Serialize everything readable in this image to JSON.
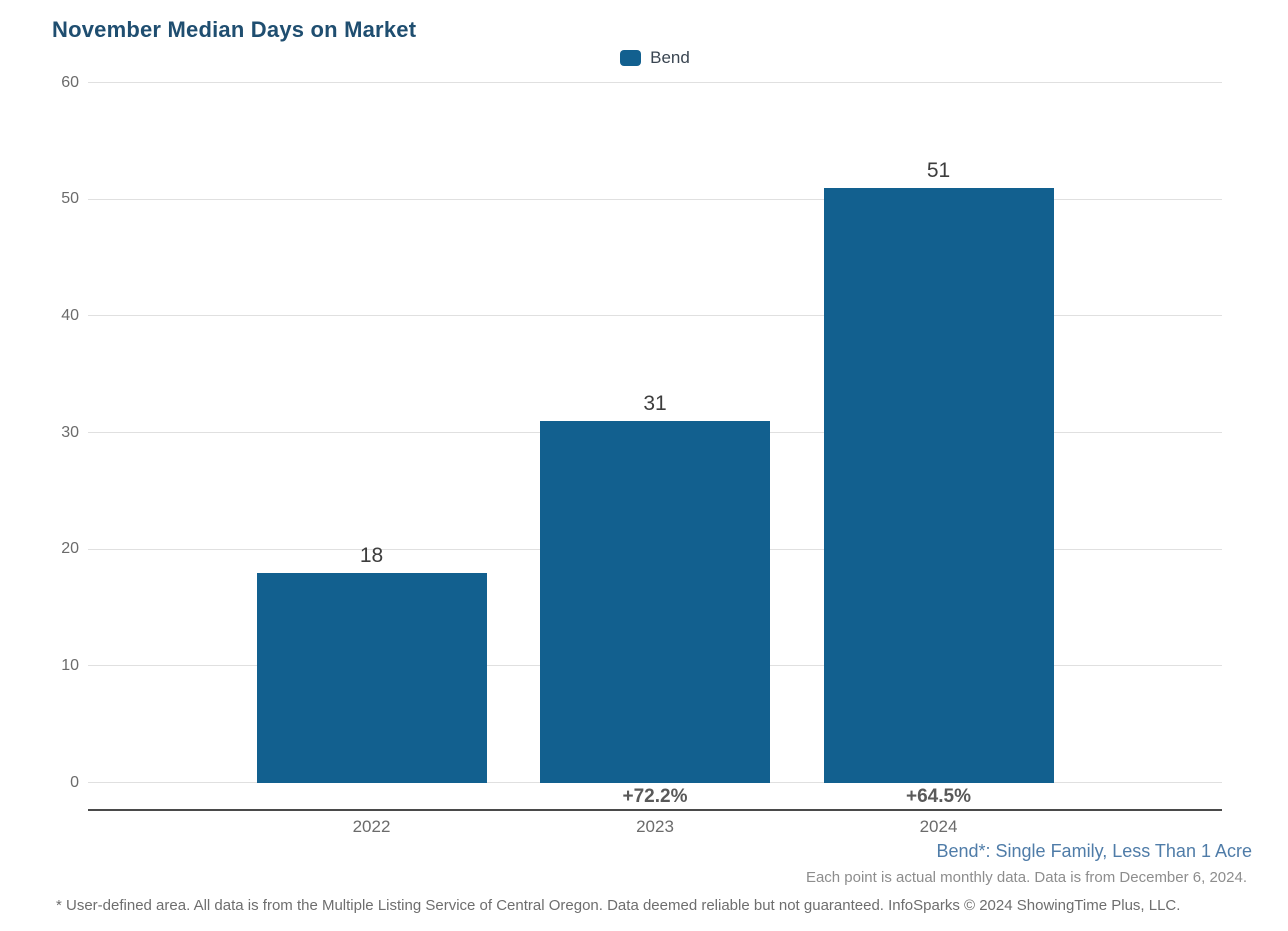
{
  "title": "November Median Days on Market",
  "legend": {
    "label": "Bend",
    "color": "#12608f"
  },
  "chart_data": {
    "type": "bar",
    "title": "November Median Days on Market",
    "categories": [
      "2022",
      "2023",
      "2024"
    ],
    "values": [
      18,
      31,
      51
    ],
    "pct_change": [
      "",
      "+72.2%",
      "+64.5%"
    ],
    "series": [
      {
        "name": "Bend",
        "values": [
          18,
          31,
          51
        ]
      }
    ],
    "xlabel": "",
    "ylabel": "",
    "ylim": [
      0,
      60
    ],
    "yticks": [
      0,
      10,
      20,
      30,
      40,
      50,
      60
    ],
    "bar_color": "#12608f",
    "grid": "horizontal",
    "legend_position": "top-center"
  },
  "footer": {
    "series_note": "Bend*: Single Family, Less Than 1 Acre",
    "data_note": "Each point is actual monthly data. Data is from December 6, 2024.",
    "disclaimer": "* User-defined area. All data is from the Multiple Listing Service of Central Oregon. Data deemed reliable but not guaranteed. InfoSparks © 2024 ShowingTime Plus, LLC."
  },
  "colors": {
    "bar": "#12608f",
    "title": "#1f4e70",
    "series_note": "#4f7ca8",
    "gridline": "#e0e0e0",
    "axis_line": "#4a4a4a",
    "tick_label": "#6b6b6b",
    "value_label": "#3d3d3d",
    "pct_label": "#595959"
  }
}
